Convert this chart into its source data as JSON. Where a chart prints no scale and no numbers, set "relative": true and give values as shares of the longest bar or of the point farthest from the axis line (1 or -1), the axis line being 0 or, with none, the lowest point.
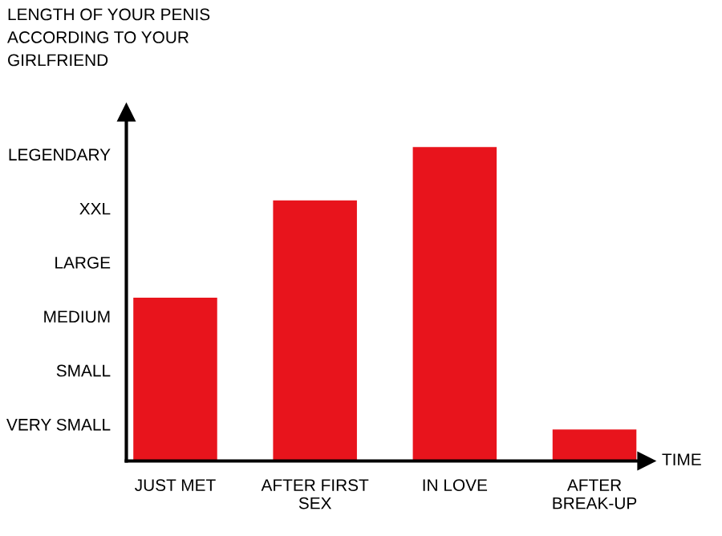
{
  "chart_data": {
    "type": "bar",
    "title": "LENGTH OF YOUR PENIS\nACCORDING TO YOUR\nGIRLFRIEND",
    "xlabel": "TIME",
    "categories": [
      "JUST MET",
      "AFTER FIRST\nSEX",
      "IN LOVE",
      "AFTER\nBREAK-UP"
    ],
    "values": [
      0.52,
      0.83,
      1,
      0.1
    ],
    "color": "#e8141c",
    "relative": true,
    "annotations": [
      "VERY SMALL",
      "SMALL",
      "MEDIUM",
      "LARGE",
      "XXL",
      "LEGENDARY"
    ],
    "grid": false
  }
}
